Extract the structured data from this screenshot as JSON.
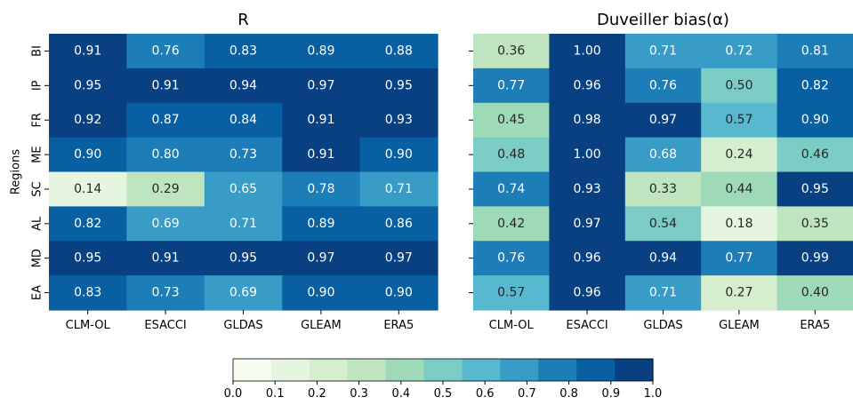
{
  "chart_data": [
    {
      "type": "heatmap",
      "title": "R",
      "ylabel": "Regions",
      "xlabel": "",
      "x": [
        "CLM-OL",
        "ESACCI",
        "GLDAS",
        "GLEAM",
        "ERA5"
      ],
      "y": [
        "BI",
        "IP",
        "FR",
        "ME",
        "SC",
        "AL",
        "MD",
        "EA"
      ],
      "values": [
        [
          0.91,
          0.76,
          0.83,
          0.89,
          0.88
        ],
        [
          0.95,
          0.91,
          0.94,
          0.97,
          0.95
        ],
        [
          0.92,
          0.87,
          0.84,
          0.91,
          0.93
        ],
        [
          0.9,
          0.8,
          0.73,
          0.91,
          0.9
        ],
        [
          0.14,
          0.29,
          0.65,
          0.78,
          0.71
        ],
        [
          0.82,
          0.69,
          0.71,
          0.89,
          0.86
        ],
        [
          0.95,
          0.91,
          0.95,
          0.97,
          0.97
        ],
        [
          0.83,
          0.73,
          0.69,
          0.9,
          0.9
        ]
      ]
    },
    {
      "type": "heatmap",
      "title": "Duveiller bias(α)",
      "ylabel": "",
      "xlabel": "",
      "x": [
        "CLM-OL",
        "ESACCI",
        "GLDAS",
        "GLEAM",
        "ERA5"
      ],
      "y": [
        "BI",
        "IP",
        "FR",
        "ME",
        "SC",
        "AL",
        "MD",
        "EA"
      ],
      "values": [
        [
          0.36,
          1.0,
          0.71,
          0.72,
          0.81
        ],
        [
          0.77,
          0.96,
          0.76,
          0.5,
          0.82
        ],
        [
          0.45,
          0.98,
          0.97,
          0.57,
          0.9
        ],
        [
          0.48,
          1.0,
          0.68,
          0.24,
          0.46
        ],
        [
          0.74,
          0.93,
          0.33,
          0.44,
          0.95
        ],
        [
          0.42,
          0.97,
          0.54,
          0.18,
          0.35
        ],
        [
          0.76,
          0.96,
          0.94,
          0.77,
          0.99
        ],
        [
          0.57,
          0.96,
          0.71,
          0.27,
          0.4
        ]
      ]
    }
  ],
  "colorbar": {
    "range": [
      0.0,
      1.0
    ],
    "ticks": [
      "0.0",
      "0.1",
      "0.2",
      "0.3",
      "0.4",
      "0.5",
      "0.6",
      "0.7",
      "0.8",
      "0.9",
      "1.0"
    ],
    "colors": [
      "#f7fcf0",
      "#e0f3db",
      "#ccebc5",
      "#a8ddb5",
      "#7bccc4",
      "#4eb3d3",
      "#2b8cbe",
      "#0868ac",
      "#084081"
    ],
    "bins": 11
  }
}
